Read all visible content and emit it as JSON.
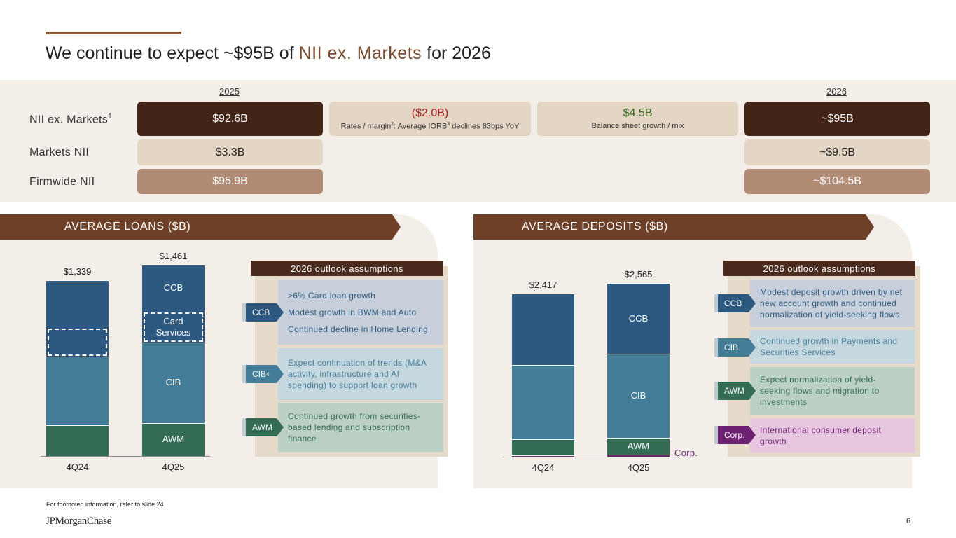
{
  "title": {
    "pre": "We continue to expect ~$95B of ",
    "highlight": "NII ex. Markets",
    "post": " for 2026"
  },
  "colors": {
    "ccb": "#2d5880",
    "cib": "#437c97",
    "awm": "#336b54",
    "corp": "#6c2271",
    "dark": "#432518",
    "banner": "#6e4028"
  },
  "nii": {
    "year_2025": "2025",
    "year_2026": "2026",
    "rows": {
      "nii_ex_markets": {
        "label": "NII ex. Markets",
        "sup": "1",
        "v2025": "$92.6B",
        "v2026": "~$95B"
      },
      "markets": {
        "label": "Markets NII",
        "v2025": "$3.3B",
        "v2026": "~$9.5B"
      },
      "firmwide": {
        "label": "Firmwide NII",
        "v2025": "$95.9B",
        "v2026": "~$104.5B"
      }
    },
    "bridge1": {
      "value": "($2.0B)",
      "sub_a": "Rates / margin",
      "sup_a": "2",
      "sub_b": ": Average IORB",
      "sup_b": "3",
      "sub_c": " declines 83bps YoY"
    },
    "bridge2": {
      "value": "$4.5B",
      "sub": "Balance sheet growth / mix"
    }
  },
  "loans": {
    "banner": "AVERAGE LOANS ($B)",
    "outlook_header": "2026 outlook assumptions",
    "outlook": {
      "ccb_tag": "CCB",
      "ccb_lines": [
        ">6% Card loan growth",
        "Modest growth in BWM and Auto",
        "Continued decline in Home Lending"
      ],
      "cib_tag": "CIB",
      "cib_sup": "4",
      "cib_text": "Expect continuation of trends (M&A activity, infrastructure and AI spending) to support loan growth",
      "awm_tag": "AWM",
      "awm_text": "Continued growth from securities-based lending and subscription finance"
    }
  },
  "deposits": {
    "banner": "AVERAGE DEPOSITS ($B)",
    "outlook_header": "2026 outlook assumptions",
    "outlook": {
      "ccb_tag": "CCB",
      "ccb_text": "Modest deposit growth driven by net new account growth and continued normalization of yield-seeking flows",
      "cib_tag": "CIB",
      "cib_text": "Continued growth in Payments and Securities Services",
      "awm_tag": "AWM",
      "awm_text": "Expect normalization of yield-seeking flows and migration to investments",
      "corp_tag": "Corp.",
      "corp_text": "International consumer deposit growth"
    }
  },
  "chart_data": [
    {
      "type": "bar",
      "stacked": true,
      "title": "AVERAGE LOANS ($B)",
      "categories": [
        "4Q24",
        "4Q25"
      ],
      "totals": [
        1339,
        1461
      ],
      "total_labels": [
        "$1,339",
        "$1,461"
      ],
      "series": [
        {
          "name": "AWM",
          "values": [
            235,
            253
          ]
        },
        {
          "name": "CIB",
          "values": [
            522,
            615
          ]
        },
        {
          "name": "CCB",
          "values": [
            582,
            593
          ]
        }
      ],
      "subset": {
        "name": "Card Services",
        "within": "CCB",
        "values": [
          222,
          235
        ]
      },
      "segment_labels": [
        "AWM",
        "CIB",
        "CCB",
        "Card Services"
      ],
      "ylim": [
        0,
        1550
      ]
    },
    {
      "type": "bar",
      "stacked": true,
      "title": "AVERAGE DEPOSITS ($B)",
      "categories": [
        "4Q24",
        "4Q25"
      ],
      "totals": [
        2417,
        2565
      ],
      "total_labels": [
        "$2,417",
        "$2,565"
      ],
      "series": [
        {
          "name": "Corp.",
          "values": [
            25,
            28
          ]
        },
        {
          "name": "AWM",
          "values": [
            230,
            247
          ]
        },
        {
          "name": "CIB",
          "values": [
            1099,
            1246
          ]
        },
        {
          "name": "CCB",
          "values": [
            1063,
            1044
          ]
        }
      ],
      "segment_labels": [
        "Corp.",
        "AWM",
        "CIB",
        "CCB"
      ],
      "ylim": [
        0,
        2600
      ]
    }
  ],
  "footer": {
    "footnote": "For footnoted information, refer to slide 24",
    "logo": "JPMorganChase",
    "page": "6"
  }
}
